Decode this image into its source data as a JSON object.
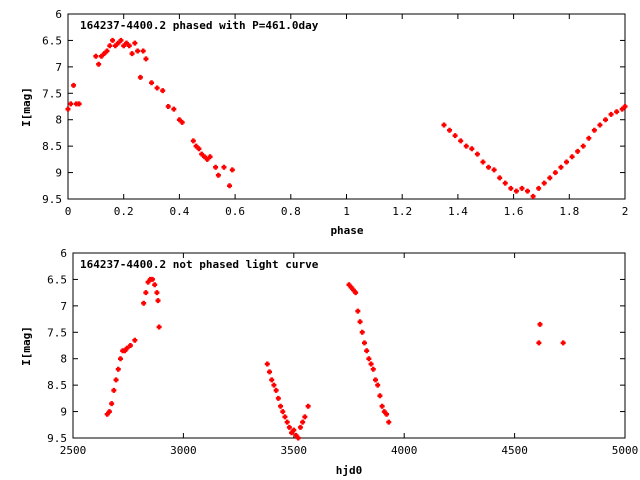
{
  "chart_data": [
    {
      "type": "scatter",
      "title": "164237-4400.2 phased with P=461.0day",
      "xlabel": "phase",
      "ylabel": "I[mag]",
      "xlim": [
        0,
        2
      ],
      "ylim": [
        9.5,
        6
      ],
      "y_inverted": true,
      "grid": false,
      "legend": "none",
      "xticks": [
        0,
        0.2,
        0.4,
        0.6,
        0.8,
        1,
        1.2,
        1.4,
        1.6,
        1.8,
        2
      ],
      "xtick_labels": [
        "0",
        "0.2",
        "0.4",
        "0.6",
        "0.8",
        "1",
        "1.2",
        "1.4",
        "1.6",
        "1.8",
        "2"
      ],
      "yticks": [
        6,
        6.5,
        7,
        7.5,
        8,
        8.5,
        9,
        9.5
      ],
      "ytick_labels": [
        "6",
        "6.5",
        "7",
        "7.5",
        "8",
        "8.5",
        "9",
        "9.5"
      ],
      "marker_color": "#ff0000",
      "series": [
        {
          "x": [
            0.0,
            0.01,
            0.02,
            0.03,
            0.04,
            0.1,
            0.11,
            0.12,
            0.13,
            0.14,
            0.15,
            0.16,
            0.17,
            0.18,
            0.19,
            0.2,
            0.21,
            0.22,
            0.23,
            0.24,
            0.25,
            0.26,
            0.27,
            0.28,
            0.3,
            0.32,
            0.34,
            0.36,
            0.38,
            0.4,
            0.41,
            0.45,
            0.46,
            0.47,
            0.48,
            0.49,
            0.5,
            0.51,
            0.53,
            0.54,
            0.56,
            0.58,
            0.59,
            1.35,
            1.37,
            1.39,
            1.41,
            1.43,
            1.45,
            1.47,
            1.49,
            1.51,
            1.53,
            1.55,
            1.57,
            1.59,
            1.61,
            1.63,
            1.65,
            1.67,
            1.69,
            1.71,
            1.73,
            1.75,
            1.77,
            1.79,
            1.81,
            1.83,
            1.85,
            1.87,
            1.89,
            1.91,
            1.93,
            1.95,
            1.97,
            1.99,
            2.0
          ],
          "y": [
            7.8,
            7.7,
            7.35,
            7.7,
            7.7,
            6.8,
            6.95,
            6.8,
            6.75,
            6.7,
            6.6,
            6.5,
            6.6,
            6.55,
            6.5,
            6.6,
            6.55,
            6.6,
            6.75,
            6.55,
            6.7,
            7.2,
            6.7,
            6.85,
            7.3,
            7.4,
            7.45,
            7.75,
            7.8,
            8.0,
            8.05,
            8.4,
            8.5,
            8.55,
            8.65,
            8.7,
            8.75,
            8.7,
            8.9,
            9.05,
            8.9,
            9.25,
            8.95,
            8.1,
            8.2,
            8.3,
            8.4,
            8.5,
            8.55,
            8.65,
            8.8,
            8.9,
            8.95,
            9.1,
            9.2,
            9.3,
            9.35,
            9.3,
            9.35,
            9.45,
            9.3,
            9.2,
            9.1,
            9.0,
            8.9,
            8.8,
            8.7,
            8.6,
            8.5,
            8.35,
            8.2,
            8.1,
            8.0,
            7.9,
            7.85,
            7.8,
            7.75
          ]
        }
      ]
    },
    {
      "type": "scatter",
      "title": "164237-4400.2 not phased light curve",
      "xlabel": "hjd0",
      "ylabel": "I[mag]",
      "xlim": [
        2500,
        5000
      ],
      "ylim": [
        9.5,
        6
      ],
      "y_inverted": true,
      "grid": false,
      "legend": "none",
      "xticks": [
        2500,
        3000,
        3500,
        4000,
        4500,
        5000
      ],
      "xtick_labels": [
        "2500",
        "3000",
        "3500",
        "4000",
        "4500",
        "5000"
      ],
      "yticks": [
        6,
        6.5,
        7,
        7.5,
        8,
        8.5,
        9,
        9.5
      ],
      "ytick_labels": [
        "6",
        "6.5",
        "7",
        "7.5",
        "8",
        "8.5",
        "9",
        "9.5"
      ],
      "marker_color": "#ff0000",
      "series": [
        {
          "x": [
            2655,
            2665,
            2675,
            2685,
            2695,
            2705,
            2715,
            2725,
            2735,
            2745,
            2760,
            2780,
            2820,
            2830,
            2840,
            2850,
            2860,
            2870,
            2880,
            2885,
            2890,
            3380,
            3390,
            3400,
            3410,
            3420,
            3430,
            3440,
            3450,
            3460,
            3470,
            3480,
            3490,
            3500,
            3510,
            3520,
            3530,
            3540,
            3550,
            3565,
            3750,
            3760,
            3770,
            3780,
            3790,
            3800,
            3810,
            3820,
            3830,
            3840,
            3850,
            3860,
            3870,
            3880,
            3890,
            3900,
            3910,
            3920,
            3930,
            4610,
            4615,
            4720
          ],
          "y": [
            9.05,
            9.0,
            8.85,
            8.6,
            8.4,
            8.2,
            8.0,
            7.85,
            7.85,
            7.8,
            7.75,
            7.65,
            6.95,
            6.75,
            6.55,
            6.5,
            6.5,
            6.6,
            6.75,
            6.9,
            7.4,
            8.1,
            8.25,
            8.4,
            8.5,
            8.6,
            8.75,
            8.9,
            9.0,
            9.1,
            9.2,
            9.3,
            9.4,
            9.35,
            9.45,
            9.5,
            9.3,
            9.2,
            9.1,
            8.9,
            6.6,
            6.65,
            6.7,
            6.75,
            7.1,
            7.3,
            7.5,
            7.7,
            7.85,
            8.0,
            8.1,
            8.2,
            8.4,
            8.5,
            8.7,
            8.9,
            9.0,
            9.05,
            9.2,
            7.7,
            7.35,
            7.7
          ]
        }
      ]
    }
  ]
}
